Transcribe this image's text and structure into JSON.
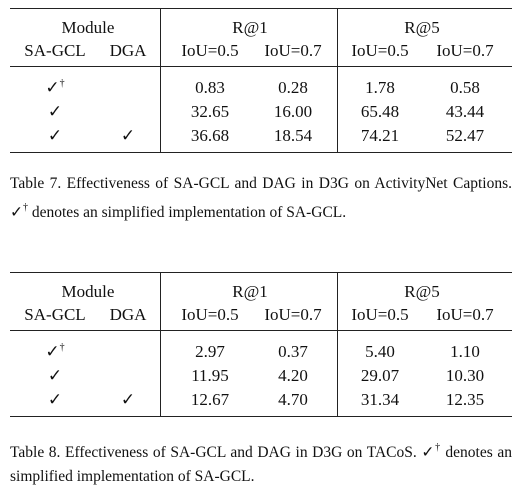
{
  "tables": [
    {
      "header": {
        "module": "Module",
        "r1": "R@1",
        "r5": "R@5",
        "cols": [
          "SA-GCL",
          "DGA",
          "IoU=0.5",
          "IoU=0.7",
          "IoU=0.5",
          "IoU=0.7"
        ]
      },
      "rows": [
        {
          "sa_gcl": "✓",
          "sup": "†",
          "values": [
            "0.83",
            "0.28",
            "1.78",
            "0.58"
          ]
        },
        {
          "sa_gcl": "✓",
          "values": [
            "32.65",
            "16.00",
            "65.48",
            "43.44"
          ]
        },
        {
          "sa_gcl": "✓",
          "dga": "✓",
          "values": [
            "36.68",
            "18.54",
            "74.21",
            "52.47"
          ]
        }
      ],
      "caption": {
        "before": "Table 7. Effectiveness of SA-GCL and DAG in D3G on ActivityNet Captions.",
        "mark": "✓",
        "sup": "†",
        "after": "denotes an simplified implementation of SA-GCL."
      }
    },
    {
      "header": {
        "module": "Module",
        "r1": "R@1",
        "r5": "R@5",
        "cols": [
          "SA-GCL",
          "DGA",
          "IoU=0.5",
          "IoU=0.7",
          "IoU=0.5",
          "IoU=0.7"
        ]
      },
      "rows": [
        {
          "sa_gcl": "✓",
          "sup": "†",
          "values": [
            "2.97",
            "0.37",
            "5.40",
            "1.10"
          ]
        },
        {
          "sa_gcl": "✓",
          "values": [
            "11.95",
            "4.20",
            "29.07",
            "10.30"
          ]
        },
        {
          "sa_gcl": "✓",
          "dga": "✓",
          "values": [
            "12.67",
            "4.70",
            "31.34",
            "12.35"
          ]
        }
      ],
      "caption": {
        "before": "Table 8. Effectiveness of SA-GCL and DAG in D3G on TACoS.",
        "mark": "✓",
        "sup": "†",
        "after": "denotes an simplified implementation of SA-GCL."
      }
    }
  ]
}
